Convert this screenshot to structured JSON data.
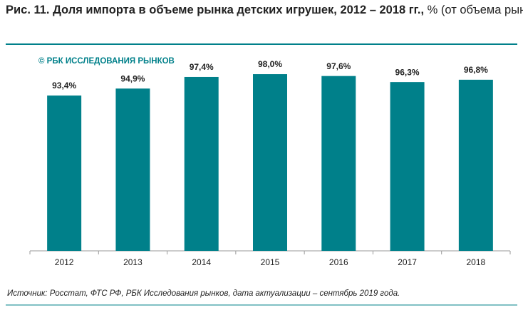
{
  "chart_data": {
    "type": "bar",
    "title_parts": [
      "Рис. 11. Доля импорта в объеме рынка детских игрушек, 2012 – 2018 гг.,",
      "% (от объема рынка в стоимостном выражении)"
    ],
    "watermark": "© РБК ИССЛЕДОВАНИЯ РЫНКОВ",
    "source": "Источник: Росстат, ФТС РФ, РБК Исследования рынков, дата актуализации – сентябрь 2019 года.",
    "categories": [
      "2012",
      "2013",
      "2014",
      "2015",
      "2016",
      "2017",
      "2018"
    ],
    "values": [
      93.4,
      94.9,
      97.4,
      98.0,
      97.6,
      96.3,
      96.8
    ],
    "value_labels": [
      "93,4%",
      "94,9%",
      "97,4%",
      "98,0%",
      "97,6%",
      "96,3%",
      "96,8%"
    ],
    "color": "#00808a",
    "ylim": [
      60,
      100
    ]
  }
}
